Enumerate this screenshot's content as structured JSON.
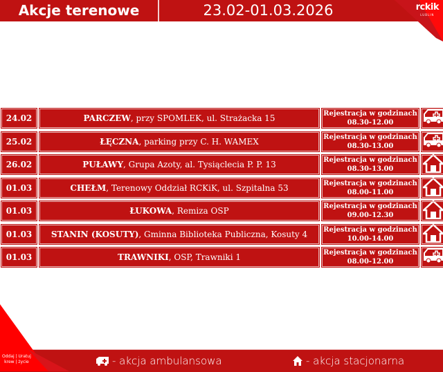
{
  "header": {
    "title": "Akcje terenowe",
    "date_range": "23.02-01.03.2026",
    "logo": "rckik",
    "logo_sub": "LUBLIN"
  },
  "colors": {
    "primary": "#bf1212",
    "accent": "#ff0000"
  },
  "rows": [
    {
      "date": "24.02",
      "city": "PARCZEW",
      "place": ", przy SPOMLEK, ul. Strażacka 15",
      "reg": "Rejestracja w godzinach",
      "hours": "08.30-12.00",
      "icon": "ambulance-icon"
    },
    {
      "date": "25.02",
      "city": "ŁĘCZNA",
      "place": ", parking przy C. H. WAMEX",
      "reg": "Rejestracja w godzinach",
      "hours": "08.30-13.00",
      "icon": "ambulance-icon"
    },
    {
      "date": "26.02",
      "city": "PUŁAWY",
      "place": ", Grupa Azoty, al. Tysiąclecia P. P. 13",
      "reg": "Rejestracja w godzinach",
      "hours": "08.30-13.00",
      "icon": "house-icon"
    },
    {
      "date": "01.03",
      "city": "CHEŁM",
      "place": ", Terenowy Oddział RCKiK, ul. Szpitalna 53",
      "reg": "Rejestracja w godzinach",
      "hours": "08.00-11.00",
      "icon": "house-icon"
    },
    {
      "date": "01.03",
      "city": "ŁUKOWA",
      "place": ", Remiza OSP",
      "reg": "Rejestracja w godzinach",
      "hours": "09.00-12.30",
      "icon": "house-icon"
    },
    {
      "date": "01.03",
      "city": "STANIN (KOSUTY)",
      "place": ", Gminna Biblioteka Publiczna, Kosuty 4",
      "reg": "Rejestracja w godzinach",
      "hours": "10.00-14.00",
      "icon": "house-icon"
    },
    {
      "date": "01.03",
      "city": "TRAWNIKI",
      "place": ", OSP, Trawniki 1",
      "reg": "Rejestracja w godzinach",
      "hours": "08.00-12.00",
      "icon": "ambulance-icon"
    }
  ],
  "footer": {
    "legend_ambulance": "- akcja ambulansowa",
    "legend_house": "- akcja stacjonarna",
    "logo_text_1": "Oddaj | Uratuj",
    "logo_text_2": "krew | życie"
  }
}
